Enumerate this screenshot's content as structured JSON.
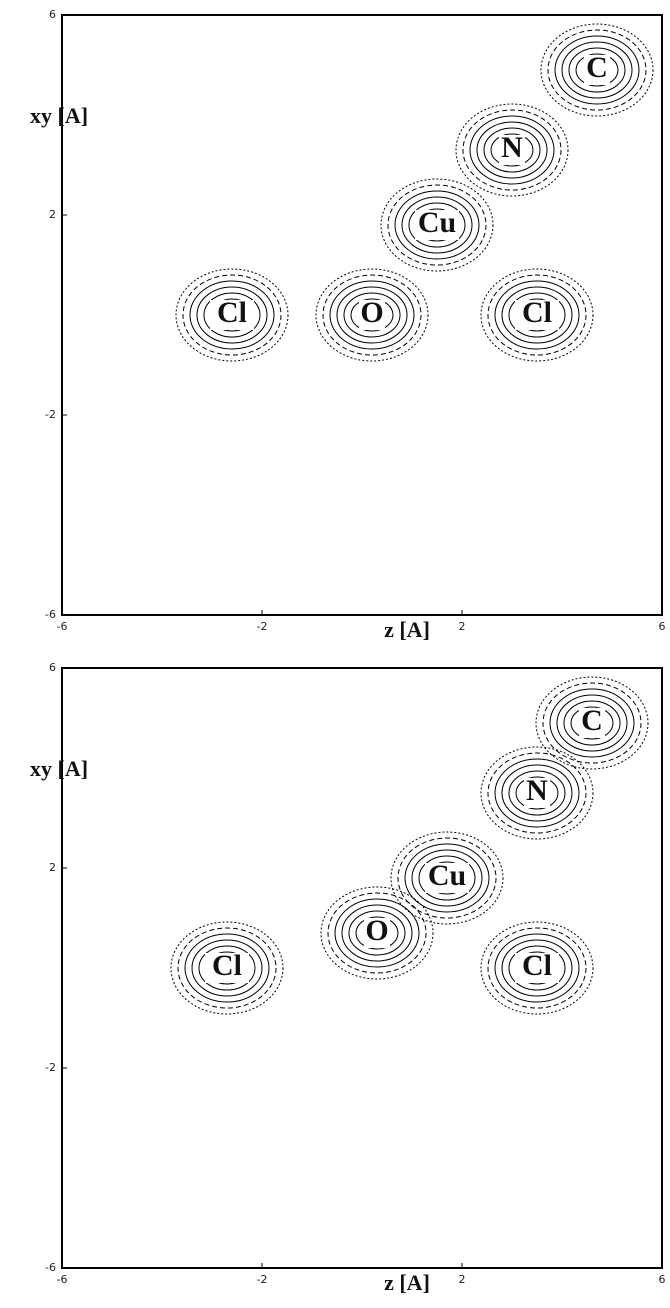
{
  "chart_data": [
    {
      "type": "contour",
      "xlabel": "z [A]",
      "ylabel": "xy [A]",
      "xlim": [
        -6,
        6
      ],
      "ylim": [
        -6,
        6
      ],
      "xticks": [
        -6,
        -2,
        2,
        6
      ],
      "yticks": [
        -6,
        -2,
        2,
        6
      ],
      "annotations": [
        {
          "text": "Cl",
          "x": -2.6,
          "y": 0
        },
        {
          "text": "O",
          "x": 0.2,
          "y": 0
        },
        {
          "text": "Cu",
          "x": 1.5,
          "y": 1.8
        },
        {
          "text": "Cl",
          "x": 3.5,
          "y": 0
        },
        {
          "text": "N",
          "x": 3.0,
          "y": 3.3
        },
        {
          "text": "C",
          "x": 4.7,
          "y": 4.9
        }
      ]
    },
    {
      "type": "contour",
      "xlabel": "z [A]",
      "ylabel": "xy [A]",
      "xlim": [
        -6,
        6
      ],
      "ylim": [
        -6,
        6
      ],
      "xticks": [
        -6,
        -2,
        2,
        6
      ],
      "yticks": [
        -6,
        -2,
        2,
        6
      ],
      "annotations": [
        {
          "text": "Cl",
          "x": -2.7,
          "y": 0
        },
        {
          "text": "O",
          "x": 0.3,
          "y": 0.7
        },
        {
          "text": "Cu",
          "x": 1.7,
          "y": 1.8
        },
        {
          "text": "Cl",
          "x": 3.5,
          "y": 0
        },
        {
          "text": "N",
          "x": 3.5,
          "y": 3.5
        },
        {
          "text": "C",
          "x": 4.6,
          "y": 4.9
        }
      ]
    }
  ]
}
